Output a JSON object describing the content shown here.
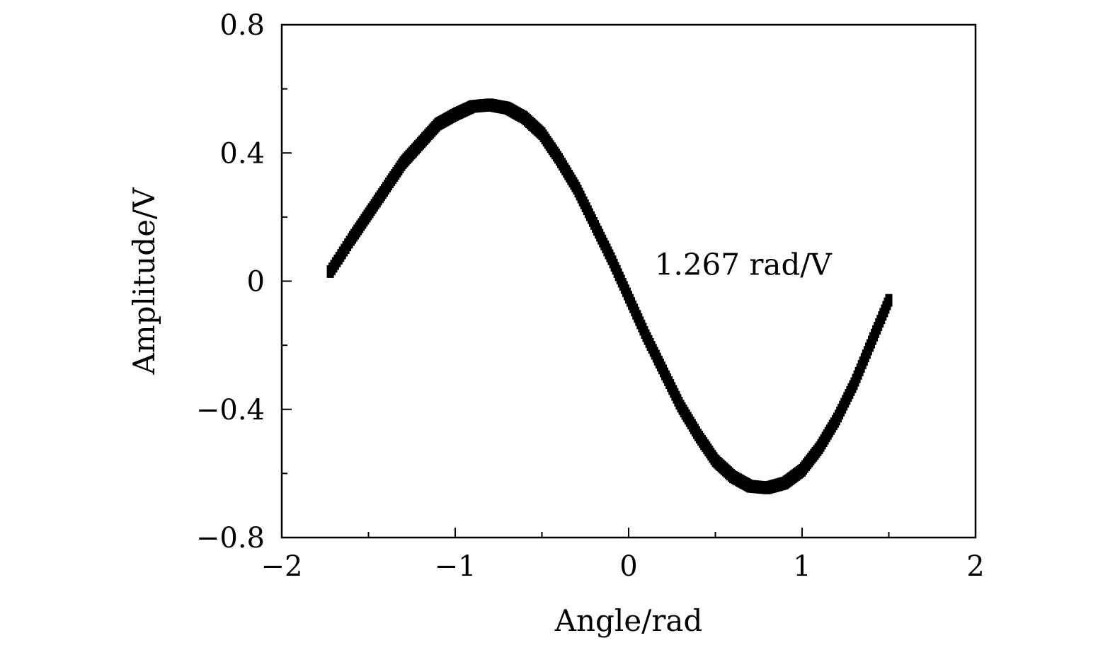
{
  "chart_data": {
    "type": "scatter",
    "title": "",
    "xlabel": "Angle/rad",
    "ylabel": "Amplitude/V",
    "xlim": [
      -2,
      2
    ],
    "ylim": [
      -0.8,
      0.8
    ],
    "x_ticks": [
      -2,
      -1,
      0,
      1,
      2
    ],
    "x_tick_labels": [
      "−2",
      "−1",
      "0",
      "1",
      "2"
    ],
    "y_ticks": [
      -0.8,
      -0.4,
      0,
      0.4,
      0.8
    ],
    "y_tick_labels": [
      "−0.8",
      "−0.4",
      "0",
      "0.4",
      "0.8"
    ],
    "grid": false,
    "annotation": {
      "text": "1.267 rad/V",
      "x": 0.15,
      "y": 0.02
    },
    "series": [
      {
        "marker": "dense-square",
        "color": "#000000",
        "x": [
          -1.72,
          -1.6,
          -1.5,
          -1.4,
          -1.3,
          -1.2,
          -1.1,
          -1.0,
          -0.9,
          -0.8,
          -0.7,
          -0.6,
          -0.5,
          -0.4,
          -0.3,
          -0.2,
          -0.1,
          0.0,
          0.1,
          0.2,
          0.3,
          0.4,
          0.5,
          0.6,
          0.7,
          0.8,
          0.9,
          1.0,
          1.1,
          1.2,
          1.3,
          1.4,
          1.5
        ],
        "y": [
          0.03,
          0.13,
          0.21,
          0.29,
          0.37,
          0.43,
          0.49,
          0.52,
          0.545,
          0.55,
          0.54,
          0.51,
          0.46,
          0.38,
          0.29,
          0.18,
          0.07,
          -0.05,
          -0.17,
          -0.28,
          -0.39,
          -0.48,
          -0.56,
          -0.61,
          -0.64,
          -0.645,
          -0.63,
          -0.59,
          -0.52,
          -0.43,
          -0.32,
          -0.19,
          -0.06
        ]
      }
    ]
  }
}
